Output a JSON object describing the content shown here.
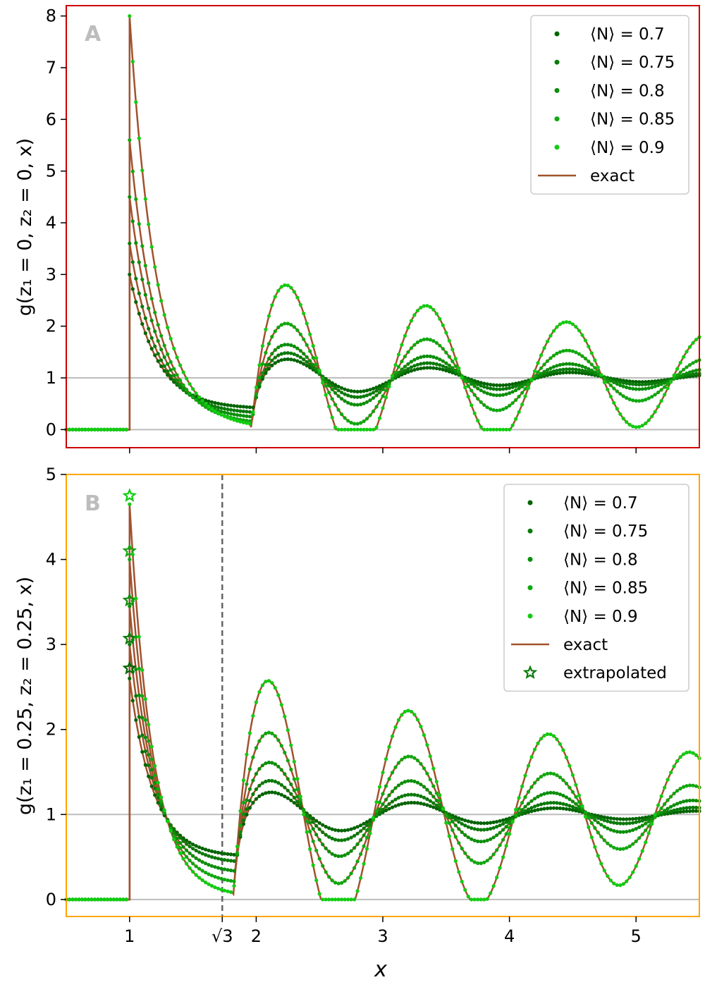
{
  "chart_data": [
    {
      "type": "line",
      "panel_label": "A",
      "ylabel": "g(z₁ = 0, z₂ = 0, x)",
      "xlim": [
        0.5,
        5.5
      ],
      "ylim": [
        -0.35,
        8.2
      ],
      "xticks": [
        1,
        2,
        3,
        4,
        5
      ],
      "yticks": [
        0,
        1,
        2,
        3,
        4,
        5,
        6,
        7,
        8
      ],
      "reference_lines": [
        0,
        1
      ],
      "frame_color": "#cc0000",
      "legend_position": "top-right",
      "series": [
        {
          "name": "⟨N⟩ = 0.7",
          "color": "#006400",
          "density": 0.7,
          "peak": 3.0,
          "peak2": 1.42,
          "min1": 0.4
        },
        {
          "name": "⟨N⟩ = 0.75",
          "color": "#0a7a0a",
          "density": 0.75,
          "peak": 3.6,
          "peak2": 1.55,
          "min1": 0.3
        },
        {
          "name": "⟨N⟩ = 0.8",
          "color": "#0b8f0b",
          "density": 0.8,
          "peak": 4.5,
          "peak2": 1.72,
          "min1": 0.2
        },
        {
          "name": "⟨N⟩ = 0.85",
          "color": "#0fa80f",
          "density": 0.85,
          "peak": 5.6,
          "peak2": 2.15,
          "min1": 0.1
        },
        {
          "name": "⟨N⟩ = 0.9",
          "color": "#11cc11",
          "density": 0.9,
          "peak": 8.0,
          "peak2": 2.92,
          "min1": 0.02
        }
      ],
      "exact_label": "exact",
      "exact_color": "#a0522d"
    },
    {
      "type": "line",
      "panel_label": "B",
      "ylabel": "g(z₁ = 0.25, z₂ = 0.25, x)",
      "xlabel": "x",
      "xlim": [
        0.5,
        5.5
      ],
      "ylim": [
        -0.2,
        5.0
      ],
      "xticks": [
        1,
        2,
        3,
        4,
        5
      ],
      "yticks": [
        0,
        1,
        2,
        3,
        4,
        5
      ],
      "reference_lines": [
        0,
        1
      ],
      "vline": {
        "x": 1.732,
        "label": "√3"
      },
      "frame_color": "#ffa500",
      "legend_position": "top-right",
      "series": [
        {
          "name": "⟨N⟩ = 0.7",
          "color": "#006400",
          "density": 0.7,
          "peak": 2.6,
          "peak2": 1.3,
          "min1": 0.5,
          "extrapolated": 2.72
        },
        {
          "name": "⟨N⟩ = 0.75",
          "color": "#0a7a0a",
          "density": 0.75,
          "peak": 3.0,
          "peak2": 1.45,
          "min1": 0.42,
          "extrapolated": 3.07
        },
        {
          "name": "⟨N⟩ = 0.8",
          "color": "#0b8f0b",
          "density": 0.8,
          "peak": 3.45,
          "peak2": 1.68,
          "min1": 0.3,
          "extrapolated": 3.52
        },
        {
          "name": "⟨N⟩ = 0.85",
          "color": "#0fa80f",
          "density": 0.85,
          "peak": 4.0,
          "peak2": 2.05,
          "min1": 0.17,
          "extrapolated": 4.1
        },
        {
          "name": "⟨N⟩ = 0.9",
          "color": "#11cc11",
          "density": 0.9,
          "peak": 4.65,
          "peak2": 2.68,
          "min1": 0.03,
          "extrapolated": 4.75
        }
      ],
      "exact_label": "exact",
      "extrapolated_label": "extrapolated",
      "exact_color": "#a0522d"
    }
  ]
}
